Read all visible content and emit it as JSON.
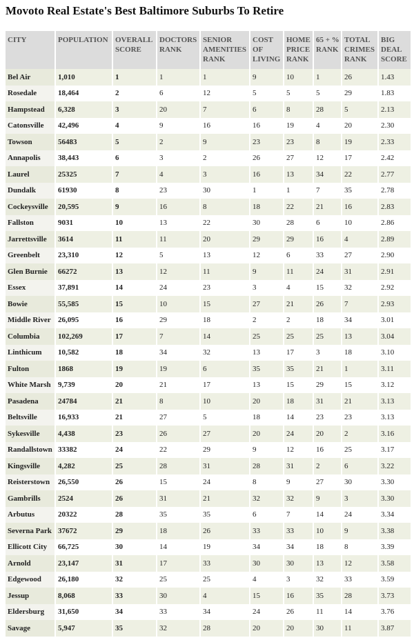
{
  "title": "Movoto Real Estate's Best Baltimore Suburbs To Retire",
  "table": {
    "header": [
      "CITY",
      "POPULATION",
      "OVERALL SCORE",
      "DOCTORS RANK",
      "SENIOR AMENITIES RANK",
      "COST OF LIVING",
      "HOME PRICE RANK",
      "65 + % RANK",
      "TOTAL CRIMES RANK",
      "BIG DEAL SCORE"
    ],
    "rows": [
      [
        "Bel Air",
        "1,010",
        "1",
        "1",
        "1",
        "9",
        "10",
        "1",
        "26",
        "1.43"
      ],
      [
        "Rosedale",
        "18,464",
        "2",
        "6",
        "12",
        "5",
        "5",
        "5",
        "29",
        "1.83"
      ],
      [
        "Hampstead",
        "6,328",
        "3",
        "20",
        "7",
        "6",
        "8",
        "28",
        "5",
        "2.13"
      ],
      [
        "Catonsville",
        "42,496",
        "4",
        "9",
        "16",
        "16",
        "19",
        "4",
        "20",
        "2.30"
      ],
      [
        "Towson",
        "56483",
        "5",
        "2",
        "9",
        "23",
        "23",
        "8",
        "19",
        "2.33"
      ],
      [
        "Annapolis",
        "38,443",
        "6",
        "3",
        "2",
        "26",
        "27",
        "12",
        "17",
        "2.42"
      ],
      [
        "Laurel",
        "25325",
        "7",
        "4",
        "3",
        "16",
        "13",
        "34",
        "22",
        "2.77"
      ],
      [
        "Dundalk",
        "61930",
        "8",
        "23",
        "30",
        "1",
        "1",
        "7",
        "35",
        "2.78"
      ],
      [
        "Cockeysville",
        "20,595",
        "9",
        "16",
        "8",
        "18",
        "22",
        "21",
        "16",
        "2.83"
      ],
      [
        "Fallston",
        "9031",
        "10",
        "13",
        "22",
        "30",
        "28",
        "6",
        "10",
        "2.86"
      ],
      [
        "Jarrettsville",
        "3614",
        "11",
        "11",
        "20",
        "29",
        "29",
        "16",
        "4",
        "2.89"
      ],
      [
        "Greenbelt",
        "23,310",
        "12",
        "5",
        "13",
        "12",
        "6",
        "33",
        "27",
        "2.90"
      ],
      [
        "Glen Burnie",
        "66272",
        "13",
        "12",
        "11",
        "9",
        "11",
        "24",
        "31",
        "2.91"
      ],
      [
        "Essex",
        "37,891",
        "14",
        "24",
        "23",
        "3",
        "4",
        "15",
        "32",
        "2.92"
      ],
      [
        "Bowie",
        "55,585",
        "15",
        "10",
        "15",
        "27",
        "21",
        "26",
        "7",
        "2.93"
      ],
      [
        "Middle River",
        "26,095",
        "16",
        "29",
        "18",
        "2",
        "2",
        "18",
        "34",
        "3.01"
      ],
      [
        "Columbia",
        "102,269",
        "17",
        "7",
        "14",
        "25",
        "25",
        "25",
        "13",
        "3.04"
      ],
      [
        "Linthicum",
        "10,582",
        "18",
        "34",
        "32",
        "13",
        "17",
        "3",
        "18",
        "3.10"
      ],
      [
        "Fulton",
        "1868",
        "19",
        "19",
        "6",
        "35",
        "35",
        "21",
        "1",
        "3.11"
      ],
      [
        "White Marsh",
        "9,739",
        "20",
        "21",
        "17",
        "13",
        "15",
        "29",
        "15",
        "3.12"
      ],
      [
        "Pasadena",
        "24784",
        "21",
        "8",
        "10",
        "20",
        "18",
        "31",
        "21",
        "3.13"
      ],
      [
        "Beltsville",
        "16,933",
        "21",
        "27",
        "5",
        "18",
        "14",
        "23",
        "23",
        "3.13"
      ],
      [
        "Sykesville",
        "4,438",
        "23",
        "26",
        "27",
        "20",
        "24",
        "20",
        "2",
        "3.16"
      ],
      [
        "Randallstown",
        "33382",
        "24",
        "22",
        "29",
        "9",
        "12",
        "16",
        "25",
        "3.17"
      ],
      [
        "Kingsville",
        "4,282",
        "25",
        "28",
        "31",
        "28",
        "31",
        "2",
        "6",
        "3.22"
      ],
      [
        "Reisterstown",
        "26,550",
        "26",
        "15",
        "24",
        "8",
        "9",
        "27",
        "30",
        "3.30"
      ],
      [
        "Gambrills",
        "2524",
        "26",
        "31",
        "21",
        "32",
        "32",
        "9",
        "3",
        "3.30"
      ],
      [
        "Arbutus",
        "20322",
        "28",
        "35",
        "35",
        "6",
        "7",
        "14",
        "24",
        "3.34"
      ],
      [
        "Severna Park",
        "37672",
        "29",
        "18",
        "26",
        "33",
        "33",
        "10",
        "9",
        "3.38"
      ],
      [
        "Ellicott City",
        "66,725",
        "30",
        "14",
        "19",
        "34",
        "34",
        "18",
        "8",
        "3.39"
      ],
      [
        "Arnold",
        "23,147",
        "31",
        "17",
        "33",
        "30",
        "30",
        "13",
        "12",
        "3.58"
      ],
      [
        "Edgewood",
        "26,180",
        "32",
        "25",
        "25",
        "4",
        "3",
        "32",
        "33",
        "3.59"
      ],
      [
        "Jessup",
        "8,068",
        "33",
        "30",
        "4",
        "15",
        "16",
        "35",
        "28",
        "3.73"
      ],
      [
        "Eldersburg",
        "31,650",
        "34",
        "33",
        "34",
        "24",
        "26",
        "11",
        "14",
        "3.76"
      ],
      [
        "Savage",
        "5,947",
        "35",
        "32",
        "28",
        "20",
        "20",
        "30",
        "11",
        "3.87"
      ]
    ]
  }
}
